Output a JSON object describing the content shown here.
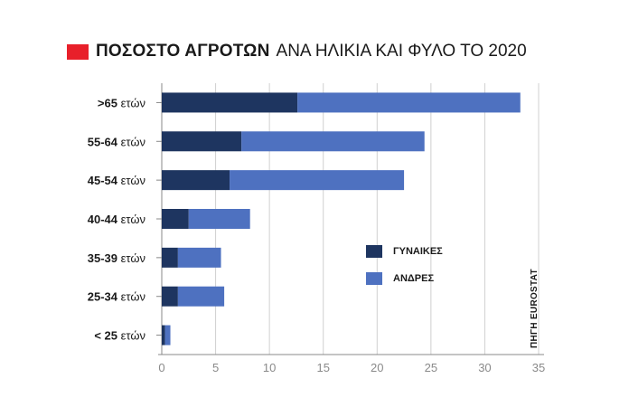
{
  "title": {
    "bold": "ΠΟΣΟΣΤΟ ΑΓΡΟΤΩΝ",
    "rest": "ΑΝΑ ΗΛΙΚΙΑ ΚΑΙ ΦΥΛΟ ΤΟ 2020"
  },
  "colors": {
    "accent": "#e8202a",
    "women": "#1e3560",
    "men": "#4e71c0",
    "grid": "#d0d0d0",
    "axis": "#888888"
  },
  "legend": {
    "items": [
      {
        "label": "ΓΥΝΑΙΚΕΣ",
        "color_key": "women"
      },
      {
        "label": "ΑΝΔΡΕΣ",
        "color_key": "men"
      }
    ]
  },
  "source": "ΠΗΓΗ EUROSTAT",
  "chart_data": {
    "type": "bar",
    "orientation": "horizontal",
    "stacked": true,
    "categories": [
      {
        "num": ">65",
        "unit": " ετών"
      },
      {
        "num": "55-64",
        "unit": " ετών"
      },
      {
        "num": "45-54",
        "unit": " ετών"
      },
      {
        "num": "40-44",
        "unit": " ετών"
      },
      {
        "num": "35-39",
        "unit": " ετών"
      },
      {
        "num": "25-34",
        "unit": " ετών"
      },
      {
        "num": "< 25",
        "unit": " ετών"
      }
    ],
    "series": [
      {
        "name": "ΓΥΝΑΙΚΕΣ",
        "color_key": "women",
        "values": [
          12.6,
          7.4,
          6.3,
          2.5,
          1.5,
          1.5,
          0.3
        ]
      },
      {
        "name": "ΑΝΔΡΕΣ",
        "color_key": "men",
        "values": [
          20.7,
          17.0,
          16.2,
          5.7,
          4.0,
          4.3,
          0.5
        ]
      }
    ],
    "xlim": [
      0,
      35
    ],
    "xticks": [
      0,
      5,
      10,
      15,
      20,
      25,
      30,
      35
    ],
    "grid": true,
    "legend_position": "right-middle"
  }
}
